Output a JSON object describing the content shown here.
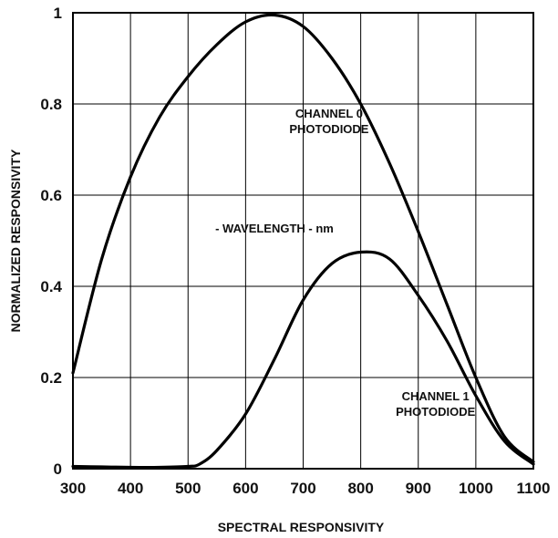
{
  "chart_data": {
    "type": "line",
    "xlabel": "- WAVELENGTH - nm",
    "ylabel": "NORMALIZED RESPONSIVITY",
    "caption": "SPECTRAL RESPONSIVITY",
    "xlim": [
      300,
      1100
    ],
    "ylim": [
      0,
      1
    ],
    "x_ticks": [
      "300",
      "400",
      "500",
      "600",
      "700",
      "800",
      "900",
      "1000",
      "1100"
    ],
    "y_ticks": [
      "0",
      "0.2",
      "0.4",
      "0.6",
      "0.8",
      "1"
    ],
    "grid": true,
    "annotations": [
      {
        "lines": [
          "CHANNEL 0",
          "PHOTODIODE"
        ],
        "x": 745,
        "y": 0.77
      },
      {
        "lines": [
          "CHANNEL 1",
          "PHOTODIODE"
        ],
        "x": 930,
        "y": 0.15
      }
    ],
    "series": [
      {
        "x": [
          300,
          350,
          400,
          450,
          500,
          550,
          600,
          650,
          700,
          750,
          800,
          850,
          900,
          950,
          1000,
          1050,
          1100
        ],
        "values": [
          0.21,
          0.46,
          0.64,
          0.77,
          0.86,
          0.93,
          0.98,
          0.995,
          0.97,
          0.9,
          0.8,
          0.67,
          0.52,
          0.36,
          0.2,
          0.07,
          0.015
        ]
      },
      {
        "x": [
          300,
          350,
          400,
          450,
          500,
          520,
          550,
          600,
          650,
          700,
          750,
          800,
          850,
          900,
          950,
          1000,
          1050,
          1100
        ],
        "values": [
          0.005,
          0.004,
          0.003,
          0.003,
          0.005,
          0.01,
          0.04,
          0.12,
          0.24,
          0.37,
          0.45,
          0.475,
          0.46,
          0.38,
          0.28,
          0.16,
          0.06,
          0.01
        ]
      }
    ]
  }
}
